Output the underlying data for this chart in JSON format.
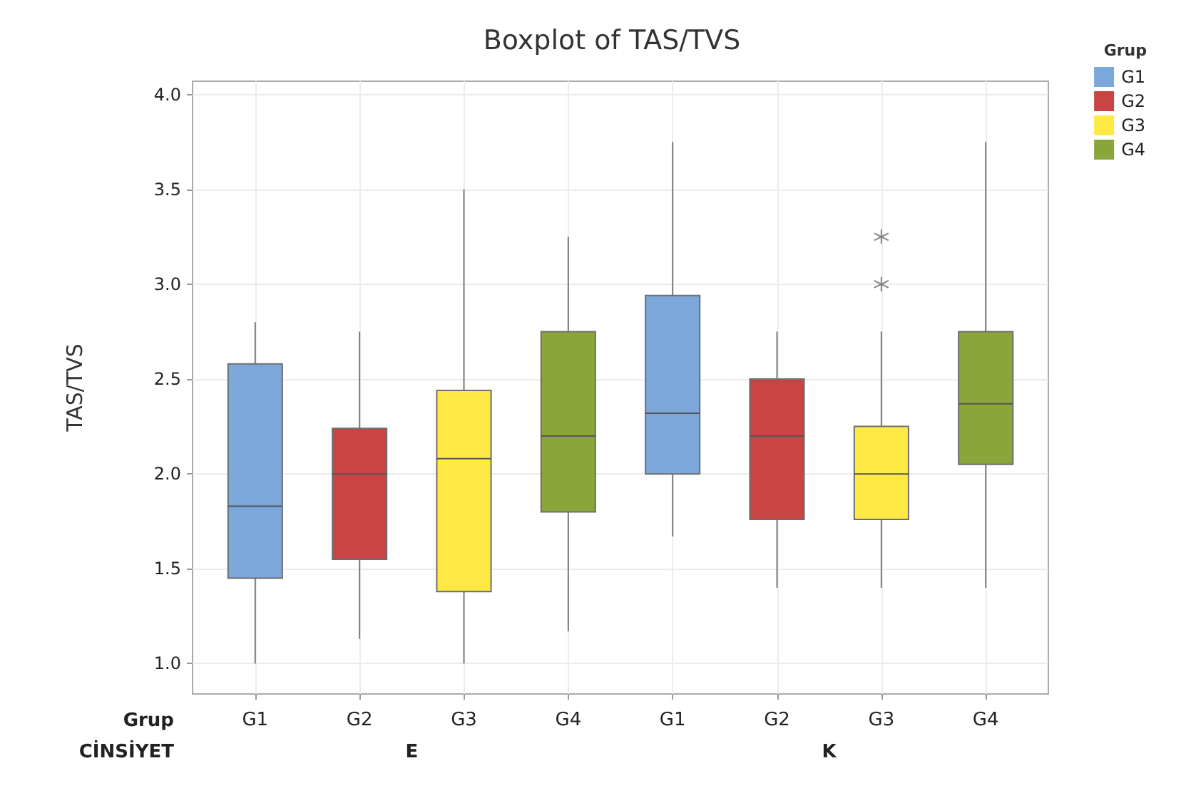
{
  "chart_data": {
    "type": "box",
    "title": "Boxplot of TAS/TVS",
    "ylabel": "TAS/TVS",
    "legend_title": "Grup",
    "categories": [
      "G1",
      "G2",
      "G3",
      "G4",
      "G1",
      "G2",
      "G3",
      "G4"
    ],
    "annotations": [
      "Grup",
      "CİNSİYET",
      "E",
      "K"
    ],
    "series": [
      {
        "name": "G1",
        "color": "#7ba7db",
        "boxes": [
          {
            "low": 1.0,
            "q1": 1.45,
            "median": 1.83,
            "q3": 2.58,
            "high": 2.8
          },
          null,
          null,
          null,
          {
            "low": 1.67,
            "q1": 2.0,
            "median": 2.32,
            "q3": 2.94,
            "high": 3.75
          },
          null,
          null,
          null
        ]
      },
      {
        "name": "G2",
        "color": "#c94545",
        "boxes": [
          null,
          {
            "low": 1.13,
            "q1": 1.55,
            "median": 2.0,
            "q3": 2.24,
            "high": 2.75
          },
          null,
          null,
          null,
          {
            "low": 1.4,
            "q1": 1.76,
            "median": 2.2,
            "q3": 2.5,
            "high": 2.75
          },
          null,
          null
        ]
      },
      {
        "name": "G3",
        "color": "#ffea45",
        "boxes": [
          null,
          null,
          {
            "low": 1.0,
            "q1": 1.38,
            "median": 2.08,
            "q3": 2.44,
            "high": 3.5
          },
          null,
          null,
          null,
          {
            "low": 1.4,
            "q1": 1.76,
            "median": 2.0,
            "q3": 2.25,
            "high": 2.75,
            "outliers": [
              3.0,
              3.25
            ]
          },
          null
        ]
      },
      {
        "name": "G4",
        "color": "#8aa53a",
        "boxes": [
          null,
          null,
          null,
          {
            "low": 1.17,
            "q1": 1.8,
            "median": 2.2,
            "q3": 2.75,
            "high": 3.25
          },
          null,
          null,
          null,
          {
            "low": 1.4,
            "q1": 2.05,
            "median": 2.37,
            "q3": 2.75,
            "high": 3.75
          }
        ]
      }
    ],
    "ylim": [
      0.84,
      4.07
    ],
    "yticks": [
      {
        "value": 1,
        "label": "1.0"
      },
      {
        "value": 1.5,
        "label": "1.5"
      },
      {
        "value": 2,
        "label": "2.0"
      },
      {
        "value": 2.5,
        "label": "2.5"
      },
      {
        "value": 3,
        "label": "3.0"
      },
      {
        "value": 3.5,
        "label": "3.5"
      },
      {
        "value": 4,
        "label": "4.0"
      }
    ],
    "grid": true,
    "legend": "top right"
  }
}
